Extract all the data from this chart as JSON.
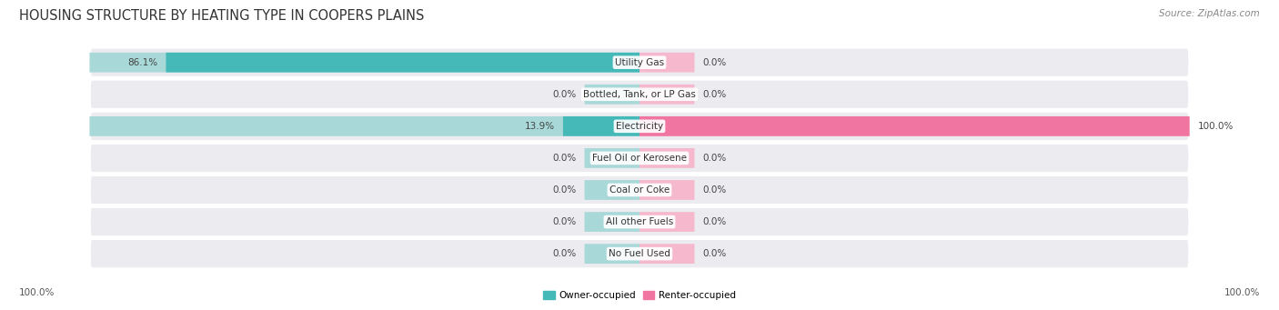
{
  "title": "HOUSING STRUCTURE BY HEATING TYPE IN COOPERS PLAINS",
  "source": "Source: ZipAtlas.com",
  "categories": [
    "Utility Gas",
    "Bottled, Tank, or LP Gas",
    "Electricity",
    "Fuel Oil or Kerosene",
    "Coal or Coke",
    "All other Fuels",
    "No Fuel Used"
  ],
  "owner_values": [
    86.1,
    0.0,
    13.9,
    0.0,
    0.0,
    0.0,
    0.0
  ],
  "renter_values": [
    0.0,
    0.0,
    100.0,
    0.0,
    0.0,
    0.0,
    0.0
  ],
  "owner_color": "#45b8b8",
  "renter_color": "#f075a0",
  "owner_color_light": "#a8d8d8",
  "renter_color_light": "#f5b8cc",
  "row_color": "#ebebf0",
  "row_color_alt": "#e4e4ea",
  "title_fontsize": 10.5,
  "source_fontsize": 7.5,
  "label_fontsize": 7.5,
  "val_fontsize": 7.5
}
